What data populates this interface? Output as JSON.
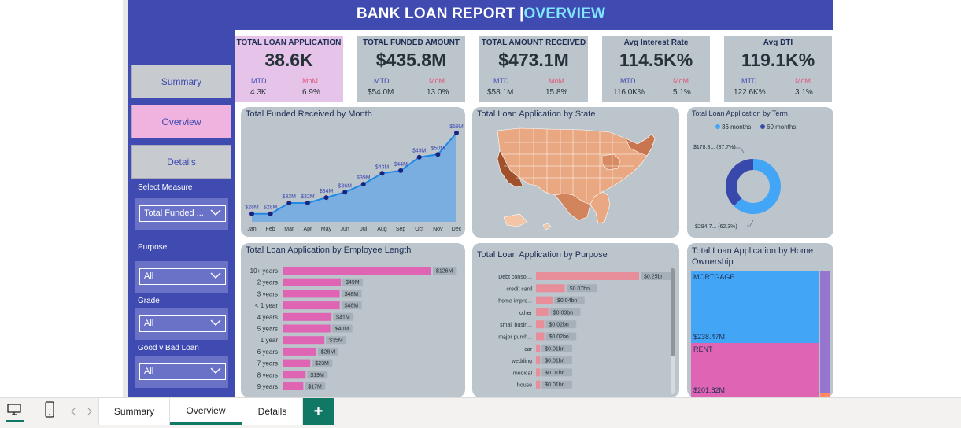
{
  "title": {
    "main": "BANK LOAN REPORT | ",
    "accent": "OVERVIEW"
  },
  "kpis": [
    {
      "title": "TOTAL LOAN APPLICATION",
      "value": "38.6K",
      "mtd_label": "MTD",
      "mom_label": "MoM",
      "mtd": "4.3K",
      "mom": "6.9%"
    },
    {
      "title": "TOTAL FUNDED AMOUNT",
      "value": "$435.8M",
      "mtd_label": "MTD",
      "mom_label": "MoM",
      "mtd": "$54.0M",
      "mom": "13.0%"
    },
    {
      "title": "TOTAL AMOUNT RECEIVED",
      "value": "$473.1M",
      "mtd_label": "MTD",
      "mom_label": "MoM",
      "mtd": "$58.1M",
      "mom": "15.8%"
    },
    {
      "title": "Avg Interest Rate",
      "value": "114.5K%",
      "mtd_label": "MTD",
      "mom_label": "MoM",
      "mtd": "116.0K%",
      "mom": "5.1%"
    },
    {
      "title": "Avg DTI",
      "value": "119.1K%",
      "mtd_label": "MTD",
      "mom_label": "MoM",
      "mtd": "122.6K%",
      "mom": "3.1%"
    }
  ],
  "nav": {
    "summary": "Summary",
    "overview": "Overview",
    "details": "Details"
  },
  "filters": {
    "select_measure_label": "Select Measure",
    "select_measure_value": "Total Funded ...",
    "purpose_label": "Purpose",
    "purpose_value": "All",
    "grade_label": "Grade",
    "grade_value": "All",
    "goodbad_label": "Good v Bad Loan",
    "goodbad_value": "All"
  },
  "panels": {
    "month": "Total Funded Received by Month",
    "state": "Total Loan Application by State",
    "term": "Total Loan Application by Term",
    "emp": "Total Loan Application by Employee Length",
    "purpose": "Total Loan Application by Purpose",
    "home": "Total Loan Application by Home Ownership"
  },
  "chart_data": [
    {
      "type": "area",
      "title": "Total Funded Received by Month",
      "categories": [
        "Jan",
        "Feb",
        "Mar",
        "Apr",
        "May",
        "Jun",
        "Jul",
        "Aug",
        "Sep",
        "Oct",
        "Nov",
        "Dec"
      ],
      "values": [
        28,
        28,
        32,
        32,
        34,
        36,
        39,
        43,
        44,
        49,
        50,
        58
      ],
      "labels": [
        "$28M",
        "$28M",
        "$32M",
        "$32M",
        "$34M",
        "$36M",
        "$39M",
        "$43M",
        "$44M",
        "$49M",
        "$50M",
        "$58M"
      ],
      "colors": {
        "line": "#1e88e5",
        "fill": "#7aaee0",
        "point": "#1a237e"
      }
    },
    {
      "type": "pie",
      "title": "Total Loan Application by Term",
      "legend": [
        "36 months",
        "60 months"
      ],
      "values": [
        62.3,
        37.7
      ],
      "labels": [
        "$294.7... (62.3%)",
        "$178.3... (37.7%)"
      ],
      "colors": [
        "#42a5f5",
        "#3949ab"
      ]
    },
    {
      "type": "bar",
      "title": "Total Loan Application by Employee Length",
      "categories": [
        "10+ years",
        "2 years",
        "3 years",
        "< 1 year",
        "4 years",
        "5 years",
        "1 year",
        "6 years",
        "7 years",
        "8 years",
        "9 years"
      ],
      "values": [
        126,
        49,
        48,
        48,
        41,
        40,
        35,
        28,
        23,
        19,
        17
      ],
      "labels": [
        "$126M",
        "$49M",
        "$48M",
        "$48M",
        "$41M",
        "$40M",
        "$35M",
        "$28M",
        "$23M",
        "$19M",
        "$17M"
      ],
      "color": "#e064b4"
    },
    {
      "type": "bar",
      "title": "Total Loan Application by Purpose",
      "categories": [
        "Debt consol...",
        "credit card",
        "home impro...",
        "other",
        "small busin...",
        "major purch...",
        "car",
        "wedding",
        "medical",
        "house"
      ],
      "values": [
        0.25,
        0.07,
        0.04,
        0.03,
        0.02,
        0.02,
        0.01,
        0.01,
        0.01,
        0.01
      ],
      "labels": [
        "$0.25bn",
        "$0.07bn",
        "$0.04bn",
        "$0.03bn",
        "$0.02bn",
        "$0.02bn",
        "$0.01bn",
        "$0.01bn",
        "$0.01bn",
        "$0.01bn"
      ],
      "color": "#e88d9a"
    },
    {
      "type": "heatmap",
      "title": "Total Loan Application by Home Ownership",
      "categories": [
        "MORTGAGE",
        "RENT"
      ],
      "values": [
        238.47,
        201.82
      ],
      "labels": [
        "$238.47M",
        "$201.82M"
      ],
      "colors": [
        "#42a5f5",
        "#e064b4"
      ]
    }
  ],
  "tabs": [
    "Summary",
    "Overview",
    "Details"
  ],
  "add_tab": "+"
}
